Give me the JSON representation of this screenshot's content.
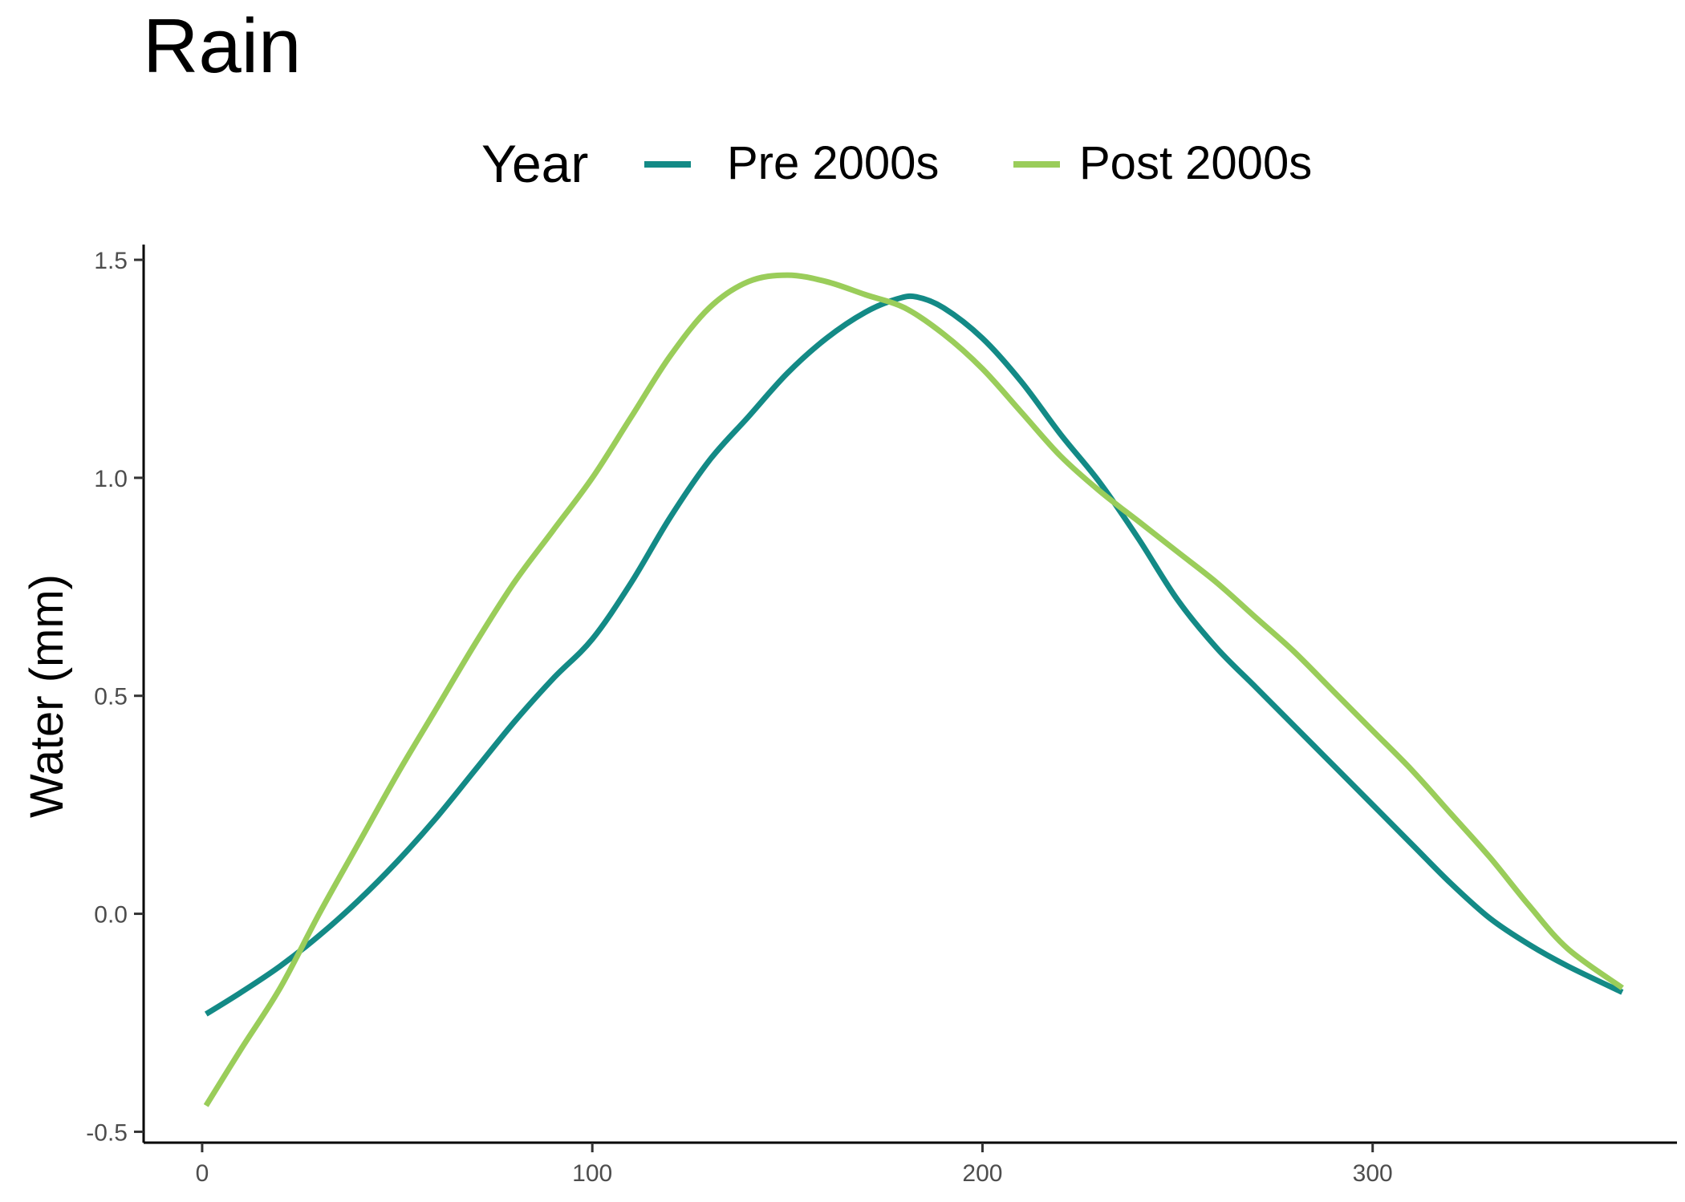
{
  "chart_data": {
    "type": "line",
    "title": "Rain",
    "xlabel": "",
    "ylabel": "Water (mm)",
    "xlim": [
      -15,
      378
    ],
    "ylim": [
      -0.525,
      1.535
    ],
    "x_ticks": [
      0,
      100,
      200,
      300
    ],
    "x_tick_labels": [
      "0",
      "100",
      "200",
      "300"
    ],
    "y_ticks": [
      -0.5,
      0.0,
      0.5,
      1.0,
      1.5
    ],
    "y_tick_labels": [
      "-0.5",
      "0.0",
      "0.5",
      "1.0",
      "1.5"
    ],
    "grid": false,
    "legend": {
      "title": "Year",
      "placement": "top"
    },
    "series": [
      {
        "name": "Pre 2000s",
        "color": "#138A86",
        "points": [
          [
            1,
            -0.23
          ],
          [
            10,
            -0.18
          ],
          [
            20,
            -0.12
          ],
          [
            30,
            -0.05
          ],
          [
            40,
            0.03
          ],
          [
            50,
            0.12
          ],
          [
            60,
            0.22
          ],
          [
            70,
            0.33
          ],
          [
            80,
            0.44
          ],
          [
            90,
            0.54
          ],
          [
            100,
            0.63
          ],
          [
            110,
            0.76
          ],
          [
            120,
            0.91
          ],
          [
            130,
            1.04
          ],
          [
            140,
            1.14
          ],
          [
            150,
            1.24
          ],
          [
            160,
            1.32
          ],
          [
            170,
            1.38
          ],
          [
            178,
            1.41
          ],
          [
            183,
            1.415
          ],
          [
            190,
            1.39
          ],
          [
            200,
            1.32
          ],
          [
            210,
            1.22
          ],
          [
            220,
            1.1
          ],
          [
            230,
            0.99
          ],
          [
            240,
            0.86
          ],
          [
            250,
            0.72
          ],
          [
            260,
            0.61
          ],
          [
            270,
            0.52
          ],
          [
            280,
            0.43
          ],
          [
            290,
            0.34
          ],
          [
            300,
            0.25
          ],
          [
            310,
            0.16
          ],
          [
            320,
            0.07
          ],
          [
            330,
            -0.01
          ],
          [
            340,
            -0.07
          ],
          [
            350,
            -0.12
          ],
          [
            364,
            -0.18
          ]
        ]
      },
      {
        "name": "Post 2000s",
        "color": "#9ACD5A",
        "points": [
          [
            1,
            -0.44
          ],
          [
            10,
            -0.31
          ],
          [
            20,
            -0.17
          ],
          [
            30,
            0.0
          ],
          [
            40,
            0.16
          ],
          [
            50,
            0.32
          ],
          [
            60,
            0.47
          ],
          [
            70,
            0.62
          ],
          [
            80,
            0.76
          ],
          [
            90,
            0.88
          ],
          [
            100,
            1.0
          ],
          [
            110,
            1.14
          ],
          [
            120,
            1.28
          ],
          [
            130,
            1.39
          ],
          [
            140,
            1.45
          ],
          [
            150,
            1.465
          ],
          [
            160,
            1.45
          ],
          [
            170,
            1.42
          ],
          [
            180,
            1.39
          ],
          [
            190,
            1.33
          ],
          [
            200,
            1.25
          ],
          [
            210,
            1.15
          ],
          [
            220,
            1.05
          ],
          [
            230,
            0.97
          ],
          [
            240,
            0.9
          ],
          [
            250,
            0.83
          ],
          [
            260,
            0.76
          ],
          [
            270,
            0.68
          ],
          [
            280,
            0.6
          ],
          [
            290,
            0.51
          ],
          [
            300,
            0.42
          ],
          [
            310,
            0.33
          ],
          [
            320,
            0.23
          ],
          [
            330,
            0.13
          ],
          [
            340,
            0.02
          ],
          [
            350,
            -0.08
          ],
          [
            364,
            -0.17
          ]
        ]
      }
    ]
  }
}
